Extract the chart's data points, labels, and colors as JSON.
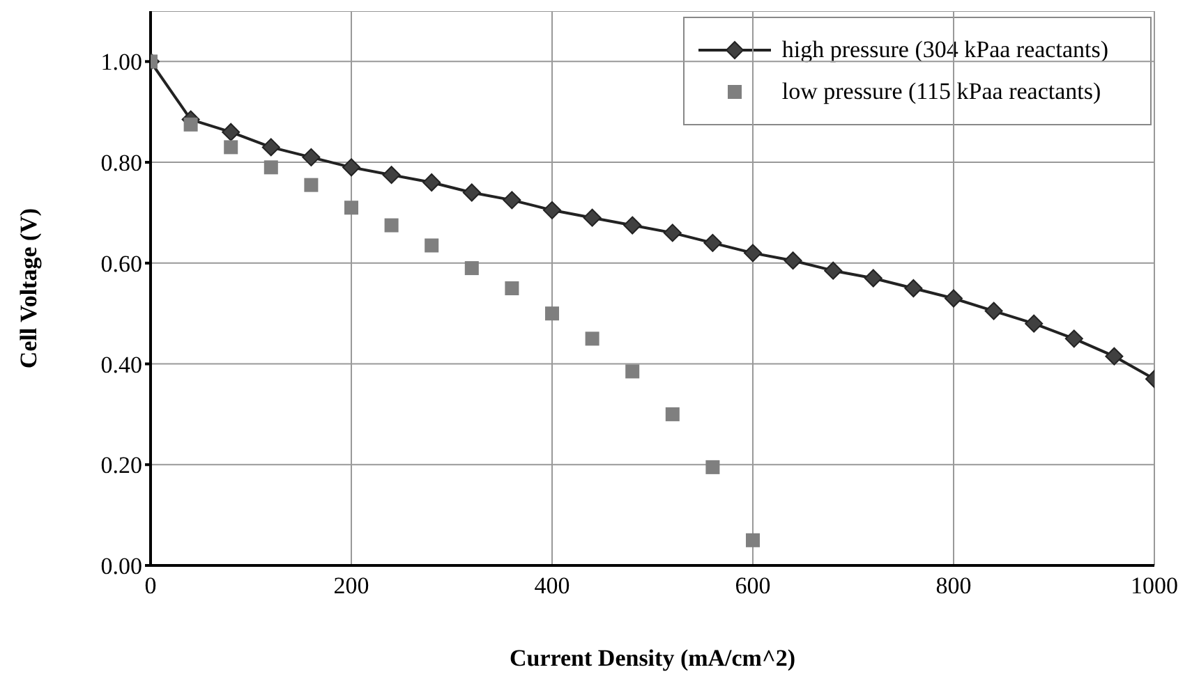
{
  "chart_data": {
    "type": "line",
    "xlabel": "Current Density (mA/cm^2)",
    "ylabel": "Cell Voltage (V)",
    "xlim": [
      0,
      1000
    ],
    "xticks": [
      0,
      200,
      400,
      600,
      800,
      1000
    ],
    "ylim": [
      0,
      1.1
    ],
    "yticks": [
      {
        "value": 0,
        "label": "0.00"
      },
      {
        "value": 0.2,
        "label": "0.20"
      },
      {
        "value": 0.4,
        "label": "0.40"
      },
      {
        "value": 0.6,
        "label": "0.60"
      },
      {
        "value": 0.8,
        "label": "0.80"
      },
      {
        "value": 1,
        "label": "1.00"
      }
    ],
    "grid": true,
    "legend": "top right",
    "line_style": "solid",
    "series": [
      {
        "name": "high pressure (304 kPaa reactants)",
        "marker": "diamond",
        "color": "#404040",
        "x": [
          0,
          40,
          80,
          120,
          160,
          200,
          240,
          280,
          320,
          360,
          400,
          440,
          480,
          520,
          560,
          600,
          640,
          680,
          720,
          760,
          800,
          840,
          880,
          920,
          960,
          1000
        ],
        "values": [
          1.0,
          0.885,
          0.86,
          0.83,
          0.81,
          0.79,
          0.775,
          0.76,
          0.74,
          0.725,
          0.705,
          0.69,
          0.675,
          0.66,
          0.64,
          0.62,
          0.605,
          0.585,
          0.57,
          0.55,
          0.53,
          0.505,
          0.48,
          0.45,
          0.415,
          0.37
        ]
      },
      {
        "name": "low pressure (115 kPaa reactants)",
        "type": "scatter",
        "marker": "square",
        "color": "#7f7f7f",
        "x": [
          0,
          40,
          80,
          120,
          160,
          200,
          240,
          280,
          320,
          360,
          400,
          440,
          480,
          520,
          560,
          600
        ],
        "values": [
          1.0,
          0.875,
          0.83,
          0.79,
          0.755,
          0.71,
          0.675,
          0.635,
          0.59,
          0.55,
          0.5,
          0.45,
          0.385,
          0.3,
          0.195,
          0.05
        ]
      }
    ]
  }
}
